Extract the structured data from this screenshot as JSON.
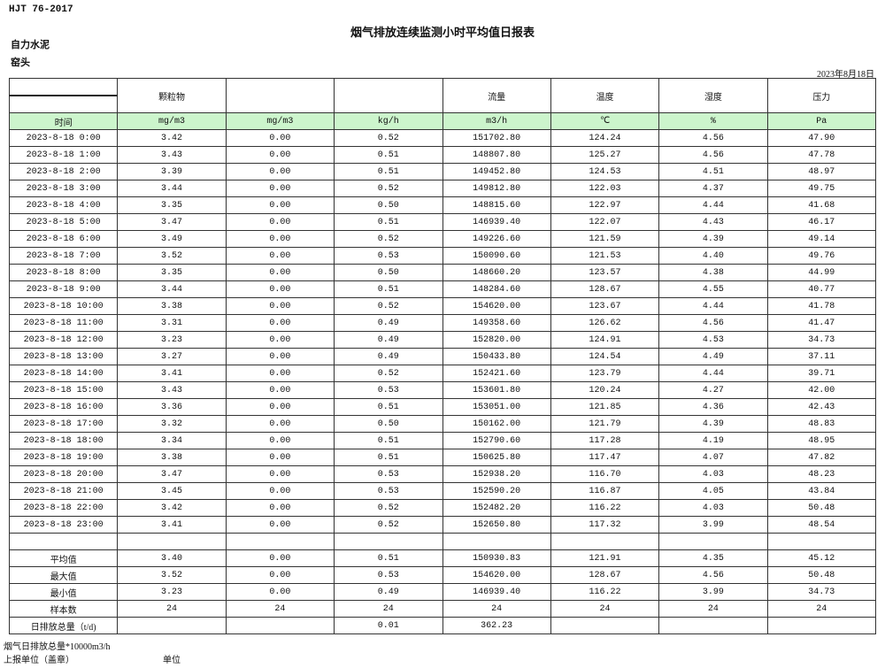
{
  "header": {
    "standard": "HJT  76-2017",
    "title": "烟气排放连续监测小时平均值日报表",
    "company": "自力水泥",
    "location": "窑头",
    "date": "2023年8月18日"
  },
  "table": {
    "columns": [
      "",
      "颗粒物",
      "",
      "",
      "流量",
      "温度",
      "湿度",
      "压力"
    ],
    "units": [
      "时间",
      "mg/m3",
      "mg/m3",
      "kg/h",
      "m3/h",
      "℃",
      "%",
      "Pa"
    ],
    "header_color": "#ccf5cc",
    "rows": [
      [
        "2023-8-18 0:00",
        "3.42",
        "0.00",
        "0.52",
        "151702.80",
        "124.24",
        "4.56",
        "47.90"
      ],
      [
        "2023-8-18 1:00",
        "3.43",
        "0.00",
        "0.51",
        "148807.80",
        "125.27",
        "4.56",
        "47.78"
      ],
      [
        "2023-8-18 2:00",
        "3.39",
        "0.00",
        "0.51",
        "149452.80",
        "124.53",
        "4.51",
        "48.97"
      ],
      [
        "2023-8-18 3:00",
        "3.44",
        "0.00",
        "0.52",
        "149812.80",
        "122.03",
        "4.37",
        "49.75"
      ],
      [
        "2023-8-18 4:00",
        "3.35",
        "0.00",
        "0.50",
        "148815.60",
        "122.97",
        "4.44",
        "41.68"
      ],
      [
        "2023-8-18 5:00",
        "3.47",
        "0.00",
        "0.51",
        "146939.40",
        "122.07",
        "4.43",
        "46.17"
      ],
      [
        "2023-8-18 6:00",
        "3.49",
        "0.00",
        "0.52",
        "149226.60",
        "121.59",
        "4.39",
        "49.14"
      ],
      [
        "2023-8-18 7:00",
        "3.52",
        "0.00",
        "0.53",
        "150090.60",
        "121.53",
        "4.40",
        "49.76"
      ],
      [
        "2023-8-18 8:00",
        "3.35",
        "0.00",
        "0.50",
        "148660.20",
        "123.57",
        "4.38",
        "44.99"
      ],
      [
        "2023-8-18 9:00",
        "3.44",
        "0.00",
        "0.51",
        "148284.60",
        "128.67",
        "4.55",
        "40.77"
      ],
      [
        "2023-8-18 10:00",
        "3.38",
        "0.00",
        "0.52",
        "154620.00",
        "123.67",
        "4.44",
        "41.78"
      ],
      [
        "2023-8-18 11:00",
        "3.31",
        "0.00",
        "0.49",
        "149358.60",
        "126.62",
        "4.56",
        "41.47"
      ],
      [
        "2023-8-18 12:00",
        "3.23",
        "0.00",
        "0.49",
        "152820.00",
        "124.91",
        "4.53",
        "34.73"
      ],
      [
        "2023-8-18 13:00",
        "3.27",
        "0.00",
        "0.49",
        "150433.80",
        "124.54",
        "4.49",
        "37.11"
      ],
      [
        "2023-8-18 14:00",
        "3.41",
        "0.00",
        "0.52",
        "152421.60",
        "123.79",
        "4.44",
        "39.71"
      ],
      [
        "2023-8-18 15:00",
        "3.43",
        "0.00",
        "0.53",
        "153601.80",
        "120.24",
        "4.27",
        "42.00"
      ],
      [
        "2023-8-18 16:00",
        "3.36",
        "0.00",
        "0.51",
        "153051.00",
        "121.85",
        "4.36",
        "42.43"
      ],
      [
        "2023-8-18 17:00",
        "3.32",
        "0.00",
        "0.50",
        "150162.00",
        "121.79",
        "4.39",
        "48.83"
      ],
      [
        "2023-8-18 18:00",
        "3.34",
        "0.00",
        "0.51",
        "152790.60",
        "117.28",
        "4.19",
        "48.95"
      ],
      [
        "2023-8-18 19:00",
        "3.38",
        "0.00",
        "0.51",
        "150625.80",
        "117.47",
        "4.07",
        "47.82"
      ],
      [
        "2023-8-18 20:00",
        "3.47",
        "0.00",
        "0.53",
        "152938.20",
        "116.70",
        "4.03",
        "48.23"
      ],
      [
        "2023-8-18 21:00",
        "3.45",
        "0.00",
        "0.53",
        "152590.20",
        "116.87",
        "4.05",
        "43.84"
      ],
      [
        "2023-8-18 22:00",
        "3.42",
        "0.00",
        "0.52",
        "152482.20",
        "116.22",
        "4.03",
        "50.48"
      ],
      [
        "2023-8-18 23:00",
        "3.41",
        "0.00",
        "0.52",
        "152650.80",
        "117.32",
        "3.99",
        "48.54"
      ]
    ],
    "summary": [
      [
        "平均值",
        "3.40",
        "0.00",
        "0.51",
        "150930.83",
        "121.91",
        "4.35",
        "45.12"
      ],
      [
        "最大值",
        "3.52",
        "0.00",
        "0.53",
        "154620.00",
        "128.67",
        "4.56",
        "50.48"
      ],
      [
        "最小值",
        "3.23",
        "0.00",
        "0.49",
        "146939.40",
        "116.22",
        "3.99",
        "34.73"
      ],
      [
        "样本数",
        "24",
        "24",
        "24",
        "24",
        "24",
        "24",
        "24"
      ],
      [
        "日排放总量（t/d)",
        "",
        "",
        "0.01",
        "362.23",
        "",
        "",
        ""
      ]
    ]
  },
  "footer": {
    "note": "烟气日排放总量*10000m3/h",
    "reporter_label": "上报单位（盖章）",
    "unit_label": "单位"
  }
}
